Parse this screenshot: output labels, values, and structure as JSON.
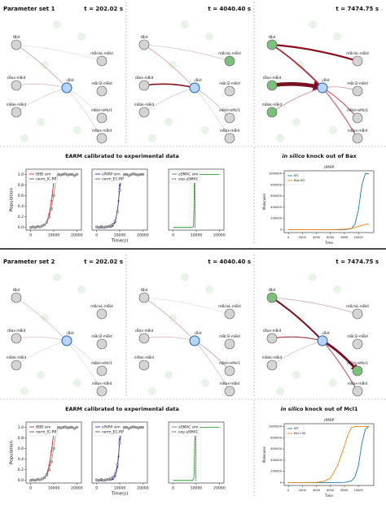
{
  "sections": [
    {
      "title": "Parameter set 1",
      "times": [
        "t = 202.02 s",
        "t = 4040.40 s",
        "t = 7474.75 s"
      ],
      "calibration_title": "EARM calibrated to experimental data",
      "knockout_title_italic": "in silico",
      "knockout_title": "knock out of Bax"
    },
    {
      "title": "Parameter set 2",
      "times": [
        "t = 202.02 s",
        "t = 4040.40 s",
        "t = 7474.75 s"
      ],
      "calibration_title": "EARM calibrated to experimental data",
      "knockout_title_italic": "in silico",
      "knockout_title": "knock out of Mcl1"
    }
  ],
  "nodes": [
    "tBid",
    "mBclxL-mBid",
    "cBax-mBid",
    "cBid",
    "mBcl2-mBid",
    "mBak-mBid",
    "mBid-mMcl1",
    "mBax-mBid"
  ],
  "chart_data": [
    {
      "type": "line",
      "ylabel": "Population",
      "xlim": [
        -2000,
        22000
      ],
      "xticks": [
        0,
        10000,
        20000
      ],
      "ylim": [
        -0.05,
        1.1
      ],
      "yticks": [
        {
          "value": 0,
          "label": "0.0"
        },
        0.2,
        0.4,
        0.6,
        0.8,
        {
          "value": 1,
          "label": "1.0"
        }
      ],
      "legend": "upper left",
      "series": [
        {
          "name": "tBID sim",
          "color": "#d62728",
          "marker": "circle",
          "x": [
            0,
            2000,
            4000,
            5000,
            6000,
            7000,
            8000,
            9000,
            10000,
            10500
          ],
          "values": [
            0,
            0,
            0.01,
            0.02,
            0.05,
            0.1,
            0.25,
            0.5,
            0.85,
            1.0
          ]
        },
        {
          "name": "norm_IC-RP",
          "color": "#555555",
          "marker": "square",
          "x": [
            0,
            1000,
            2000,
            3000,
            4000,
            5000,
            6000,
            7000,
            8000,
            9000,
            10000,
            11000,
            12000,
            13000,
            14000,
            15000,
            16000,
            17000,
            18000,
            19000,
            20000
          ],
          "values": [
            0,
            0.01,
            0,
            0.02,
            0.01,
            0.03,
            0.05,
            0.1,
            0.2,
            0.35,
            0.6,
            0.9,
            1.0,
            0.99,
            1.0,
            1.01,
            0.99,
            1.0,
            1.0,
            0.98,
            1.0
          ]
        }
      ]
    },
    {
      "type": "line",
      "xlabel": "Time(s)",
      "xlim": [
        -2000,
        22000
      ],
      "xticks": [
        0,
        10000,
        20000
      ],
      "ylim": [
        -0.05,
        1.1
      ],
      "legend": "upper left",
      "series": [
        {
          "name": "cPARP sim",
          "color": "#1f2fa8",
          "marker": "circle",
          "x": [
            0,
            2000,
            4000,
            6000,
            7000,
            8000,
            9000,
            9500,
            10000,
            10500
          ],
          "values": [
            0,
            0,
            0,
            0.01,
            0.03,
            0.1,
            0.3,
            0.5,
            0.8,
            1.0
          ]
        },
        {
          "name": "norm_EC-RP",
          "color": "#555555",
          "marker": "square",
          "x": [
            0,
            1000,
            2000,
            3000,
            4000,
            5000,
            6000,
            7000,
            8000,
            9000,
            10000,
            11000,
            12000,
            13000,
            14000,
            15000,
            16000,
            17000,
            18000,
            19000,
            20000
          ],
          "values": [
            0.01,
            0,
            0.02,
            0,
            0.01,
            0.02,
            0.03,
            0.06,
            0.12,
            0.3,
            0.7,
            0.95,
            1.0,
            1.0,
            0.98,
            1.0,
            1.01,
            1.0,
            0.99,
            1.0,
            1.0
          ]
        }
      ]
    },
    {
      "type": "line",
      "xlim": [
        -2000,
        22000
      ],
      "xticks": [
        0,
        10000,
        20000
      ],
      "ylim": [
        -0.05,
        1.1
      ],
      "legend": "upper left",
      "series": [
        {
          "name": "aSMAC sim",
          "color": "#2ca02c",
          "x": [
            0,
            8000,
            8800,
            9000,
            9200,
            9500,
            20000
          ],
          "values": [
            0,
            0,
            0.02,
            0.3,
            0.9,
            1.0,
            1.0
          ]
        },
        {
          "name": "exp aSMAC",
          "color": "#111111",
          "style": "dotted",
          "x": [
            9500,
            9500
          ],
          "values": [
            0,
            1.0
          ]
        }
      ]
    },
    {
      "type": "line",
      "title": "cPARP",
      "ylabel": "Molecules",
      "xlabel": "Time",
      "xlim": [
        -600,
        12200
      ],
      "xticks": [
        0,
        2000,
        4000,
        6000,
        8000,
        10000
      ],
      "ylim": [
        -50000,
        1050000
      ],
      "yticks": [
        0,
        200000,
        400000,
        600000,
        800000,
        1000000
      ],
      "legend": "upper left",
      "series": [
        {
          "name": "WT",
          "color": "#1f77b4",
          "x": [
            0,
            2000,
            4000,
            6000,
            8000,
            9000,
            9500,
            10000,
            10500,
            11000,
            11500
          ],
          "values": [
            0,
            0,
            0,
            0,
            1000,
            20000,
            100000,
            350000,
            800000,
            1000000,
            1000000
          ]
        },
        {
          "name": "Bax KO",
          "color": "#ff7f0e",
          "x": [
            0,
            2000,
            4000,
            6000,
            8000,
            9000,
            9500,
            10000,
            10500,
            11000,
            11500
          ],
          "values": [
            0,
            0,
            0,
            2000,
            10000,
            25000,
            40000,
            60000,
            80000,
            95000,
            105000
          ]
        }
      ]
    },
    {
      "type": "line",
      "ylabel": "Population",
      "xlim": [
        -2000,
        22000
      ],
      "xticks": [
        0,
        10000,
        20000
      ],
      "ylim": [
        -0.05,
        1.1
      ],
      "yticks": [
        {
          "value": 0,
          "label": "0.0"
        },
        0.2,
        0.4,
        0.6,
        0.8,
        {
          "value": 1,
          "label": "1.0"
        }
      ],
      "legend": "upper left",
      "series": [
        {
          "name": "tBID sim",
          "color": "#d62728",
          "marker": "circle",
          "x": [
            0,
            2000,
            4000,
            5000,
            6000,
            7000,
            8000,
            9000,
            10000,
            10500
          ],
          "values": [
            0,
            0,
            0.01,
            0.03,
            0.06,
            0.12,
            0.28,
            0.55,
            0.88,
            1.0
          ]
        },
        {
          "name": "norm_IC-RP",
          "color": "#555555",
          "marker": "square",
          "x": [
            0,
            1000,
            2000,
            3000,
            4000,
            5000,
            6000,
            7000,
            8000,
            9000,
            10000,
            11000,
            12000,
            13000,
            14000,
            15000,
            16000,
            17000,
            18000,
            19000,
            20000
          ],
          "values": [
            0,
            0.01,
            0,
            0.02,
            0.01,
            0.03,
            0.05,
            0.1,
            0.2,
            0.35,
            0.6,
            0.9,
            1.0,
            0.99,
            1.0,
            1.01,
            0.99,
            1.0,
            1.0,
            0.98,
            1.0
          ]
        }
      ]
    },
    {
      "type": "line",
      "xlabel": "Time(s)",
      "xlim": [
        -2000,
        22000
      ],
      "xticks": [
        0,
        10000,
        20000
      ],
      "ylim": [
        -0.05,
        1.1
      ],
      "legend": "upper left",
      "series": [
        {
          "name": "cPARP sim",
          "color": "#1f2fa8",
          "marker": "circle",
          "x": [
            0,
            2000,
            4000,
            6000,
            7000,
            8000,
            9000,
            9500,
            10000,
            10500
          ],
          "values": [
            0,
            0,
            0,
            0.01,
            0.02,
            0.08,
            0.25,
            0.45,
            0.78,
            1.0
          ]
        },
        {
          "name": "norm_EC-RP",
          "color": "#555555",
          "marker": "square",
          "x": [
            0,
            1000,
            2000,
            3000,
            4000,
            5000,
            6000,
            7000,
            8000,
            9000,
            10000,
            11000,
            12000,
            13000,
            14000,
            15000,
            16000,
            17000,
            18000,
            19000,
            20000
          ],
          "values": [
            0.01,
            0,
            0.02,
            0,
            0.01,
            0.02,
            0.03,
            0.06,
            0.12,
            0.3,
            0.7,
            0.95,
            1.0,
            1.0,
            0.98,
            1.0,
            1.01,
            1.0,
            0.99,
            1.0,
            1.0
          ]
        }
      ]
    },
    {
      "type": "line",
      "xlim": [
        -2000,
        22000
      ],
      "xticks": [
        0,
        10000,
        20000
      ],
      "ylim": [
        -0.05,
        1.1
      ],
      "legend": "upper left",
      "series": [
        {
          "name": "aSMAC sim",
          "color": "#2ca02c",
          "x": [
            0,
            8500,
            9000,
            9200,
            9400,
            9600,
            20000
          ],
          "values": [
            0,
            0,
            0.05,
            0.4,
            0.9,
            1.0,
            1.0
          ]
        },
        {
          "name": "exp aSMAC",
          "color": "#111111",
          "style": "dotted",
          "x": [
            9800,
            9800
          ],
          "values": [
            0,
            1.0
          ]
        }
      ]
    },
    {
      "type": "line",
      "title": "cPARP",
      "ylabel": "Molecules",
      "xlabel": "Time",
      "xlim": [
        -600,
        12200
      ],
      "xticks": [
        0,
        2000,
        4000,
        6000,
        8000,
        10000
      ],
      "ylim": [
        -50000,
        1050000
      ],
      "yticks": [
        0,
        200000,
        400000,
        600000,
        800000,
        1000000
      ],
      "legend": "upper left",
      "series": [
        {
          "name": "WT",
          "color": "#1f77b4",
          "x": [
            0,
            2000,
            4000,
            6000,
            8000,
            9000,
            9500,
            10000,
            10500,
            11000,
            11500
          ],
          "values": [
            0,
            0,
            0,
            0,
            5000,
            30000,
            100000,
            300000,
            700000,
            950000,
            1000000
          ]
        },
        {
          "name": "Mcl1 KO",
          "color": "#ff7f0e",
          "x": [
            0,
            2000,
            4000,
            5000,
            6000,
            7000,
            8000,
            8500,
            9000,
            9500,
            11500
          ],
          "values": [
            0,
            1000,
            5000,
            20000,
            80000,
            300000,
            650000,
            850000,
            980000,
            1000000,
            1000000
          ]
        }
      ]
    }
  ]
}
